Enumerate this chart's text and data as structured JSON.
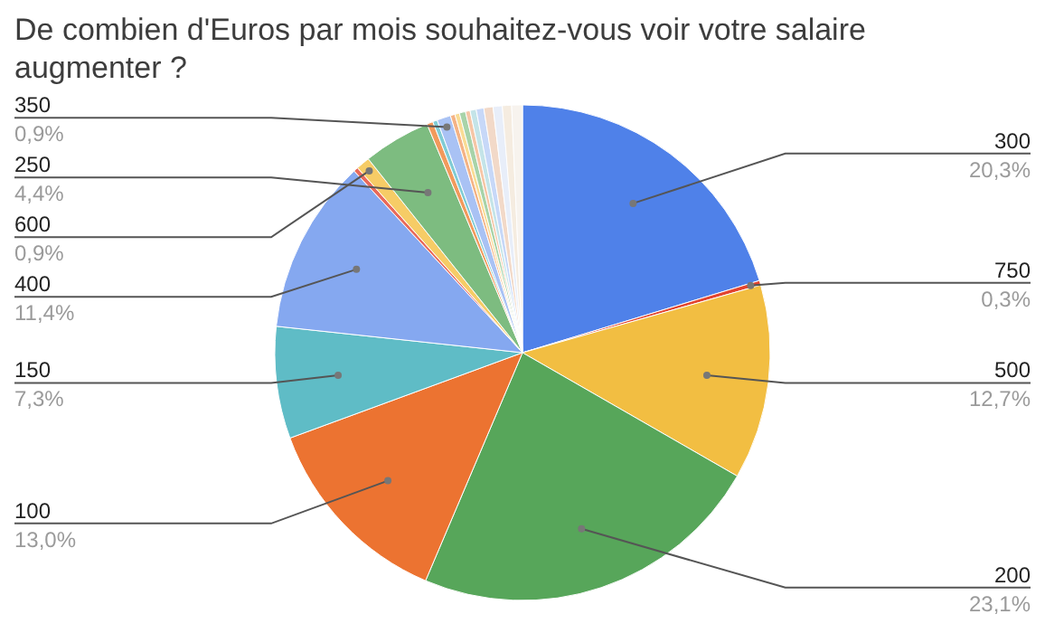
{
  "chart_data": {
    "type": "pie",
    "title": "De combien d'Euros par mois souhaitez-vous voir votre salaire augmenter ?",
    "categories": [
      "300",
      "750",
      "500",
      "200",
      "100",
      "150",
      "400",
      null,
      "600",
      "250",
      null,
      null,
      "350",
      null,
      null,
      null,
      null,
      null,
      null,
      null,
      null,
      null,
      null
    ],
    "values": [
      20.3,
      0.3,
      12.7,
      23.1,
      13.0,
      7.3,
      11.4,
      0.3,
      0.9,
      4.4,
      0.4,
      0.3,
      0.9,
      0.3,
      0.3,
      0.4,
      0.3,
      0.4,
      0.5,
      0.6,
      0.6,
      0.6,
      0.7
    ],
    "colors": [
      "#4f81e9",
      "#e2442f",
      "#f2be42",
      "#57a65a",
      "#ec7331",
      "#5fbcc6",
      "#85a8f0",
      "#e96a5b",
      "#f6cc66",
      "#7dbc80",
      "#f29a5c",
      "#80ccd4",
      "#a9c2f4",
      "#f4b385",
      "#f9dc95",
      "#a8d3a9",
      "#f6c6a6",
      "#c4e4e8",
      "#c7d8f8",
      "#f2d9c8",
      "#e8eef9",
      "#f5ece0",
      "#f7f3ee"
    ],
    "value_labels": [
      "20,3%",
      "0,3%",
      "12,7%",
      "23,1%",
      "13,0%",
      "7,3%",
      "11,4%",
      null,
      "0,9%",
      "4,4%",
      null,
      null,
      "0,9%",
      null,
      null,
      null,
      null,
      null,
      null,
      null,
      null,
      null,
      null
    ]
  }
}
